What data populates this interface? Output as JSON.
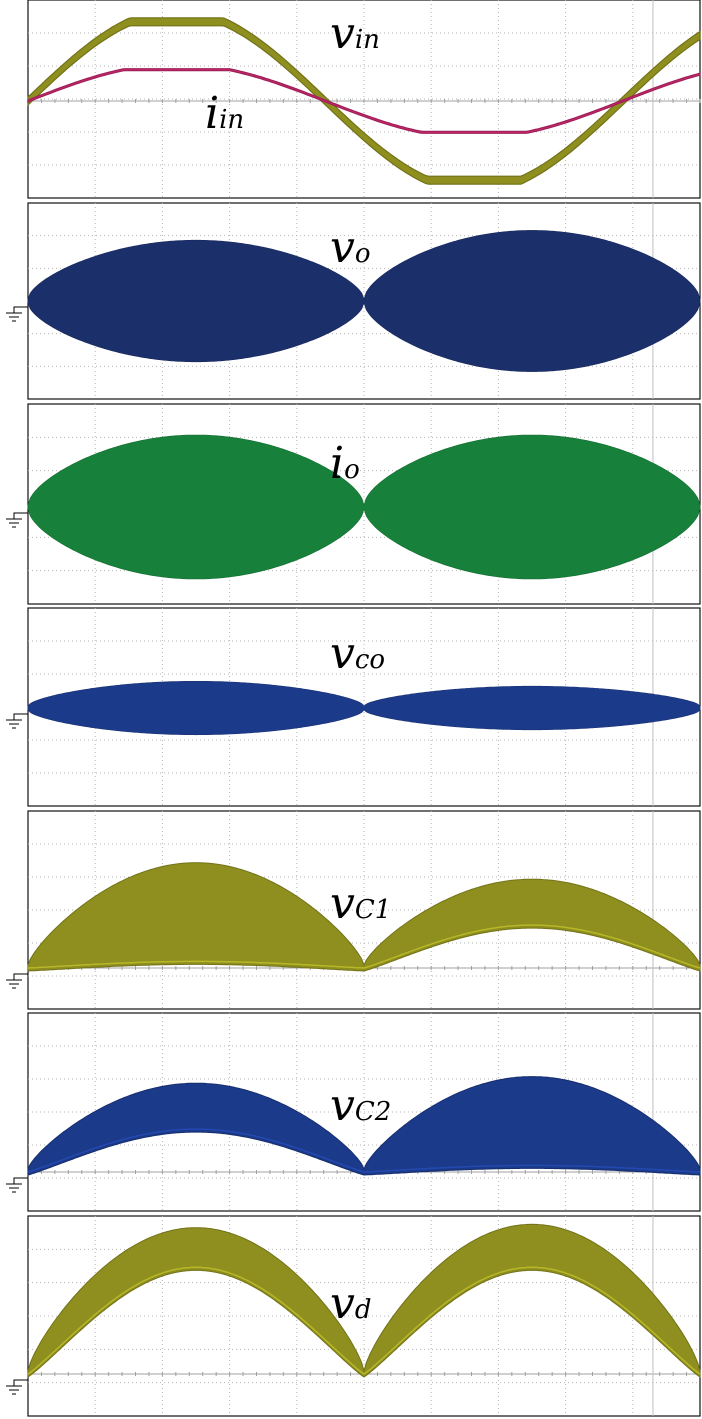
{
  "chart_data": [
    {
      "type": "line",
      "label_main": "v",
      "label_sub": "in",
      "series": [
        {
          "label_main": "v",
          "label_sub": "in",
          "color": "#8f8f1f",
          "shape": "sine",
          "period_div": 8.85,
          "phase_div": 0.0,
          "amp_div": 2.4,
          "flat_top": 0.88,
          "band_div": 0.12,
          "offset_div": 0.0
        },
        {
          "label_main": "i",
          "label_sub": "in",
          "color": "#c8286e",
          "shape": "sine",
          "period_div": 8.85,
          "phase_div": 0.0,
          "amp_div": 0.95,
          "flat_top": 0.85,
          "band_div": 0.03,
          "offset_div": 0.0
        }
      ],
      "grid_divisions": {
        "x": 10,
        "y": 6
      },
      "zero_div": 0
    },
    {
      "type": "line",
      "label_main": "v",
      "label_sub": "o",
      "series": [
        {
          "label_main": "v",
          "label_sub": "o",
          "color": "#1b2f6b",
          "shape": "envelope",
          "cycles": 2,
          "amps_div": [
            1.8,
            2.1
          ],
          "offset_div": 0.0,
          "ground_marker": true
        }
      ],
      "grid_divisions": {
        "x": 10,
        "y": 6
      },
      "zero_div": 0
    },
    {
      "type": "line",
      "label_main": "i",
      "label_sub": "o",
      "series": [
        {
          "label_main": "i",
          "label_sub": "o",
          "color": "#17803a",
          "shape": "envelope",
          "cycles": 2,
          "amps_div": [
            2.1,
            2.1
          ],
          "offset_div": 0.0,
          "ground_marker": true
        }
      ],
      "grid_divisions": {
        "x": 10,
        "y": 6
      },
      "zero_div": 0
    },
    {
      "type": "line",
      "label_main": "v",
      "label_sub": "co",
      "series": [
        {
          "label_main": "v",
          "label_sub": "co",
          "color": "#1c3a8a",
          "shape": "envelope",
          "cycles": 2,
          "amps_div": [
            0.75,
            0.6
          ],
          "offset_div": 0.0,
          "ground_marker": true
        }
      ],
      "grid_divisions": {
        "x": 10,
        "y": 6
      },
      "zero_div": 0
    },
    {
      "type": "area",
      "label_main": "v",
      "label_sub": "C1",
      "series": [
        {
          "label_main": "v",
          "label_sub": "C1",
          "color": "#8f8f1f",
          "shape": "arch",
          "cycles": 2,
          "upper_div": [
            3.1,
            2.6
          ],
          "lower_div": [
            0.2,
            1.3
          ],
          "offset_div": 0.0,
          "ground_marker": true
        }
      ],
      "grid_divisions": {
        "x": 10,
        "y": 6
      },
      "zero_div": -2.0
    },
    {
      "type": "area",
      "label_main": "v",
      "label_sub": "C2",
      "series": [
        {
          "label_main": "v",
          "label_sub": "C2",
          "color": "#1c3a8a",
          "shape": "arch",
          "cycles": 2,
          "upper_div": [
            2.6,
            2.8
          ],
          "lower_div": [
            1.3,
            0.2
          ],
          "offset_div": 0.0,
          "ground_marker": true
        }
      ],
      "grid_divisions": {
        "x": 10,
        "y": 6
      },
      "zero_div": -2.0
    },
    {
      "type": "area",
      "label_main": "v",
      "label_sub": "d",
      "series": [
        {
          "label_main": "v",
          "label_sub": "d",
          "color": "#8f8f1f",
          "shape": "arch",
          "cycles": 2,
          "upper_div": [
            4.3,
            4.4
          ],
          "lower_div": [
            3.2,
            3.2
          ],
          "offset_div": 0.0,
          "ground_marker": true
        }
      ],
      "grid_divisions": {
        "x": 10,
        "y": 6
      },
      "zero_div": -2.0
    }
  ]
}
